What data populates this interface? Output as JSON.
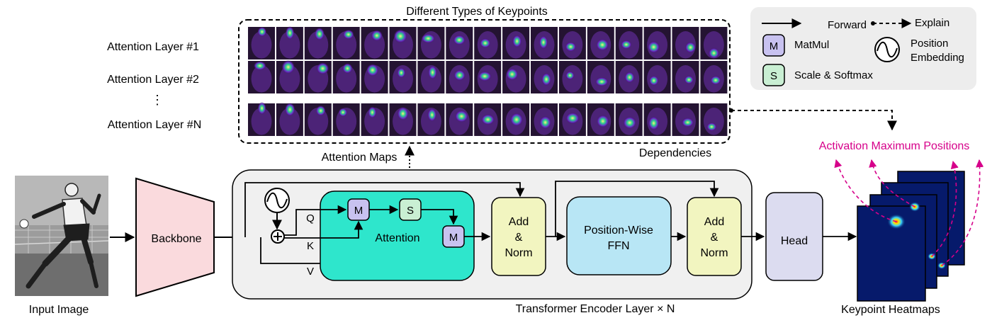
{
  "labels": {
    "keypoint_types": "Different Types of Keypoints",
    "attention_layer_1": "Attention Layer #1",
    "attention_layer_2": "Attention Layer #2",
    "vdots": "⋮",
    "attention_layer_n": "Attention Layer #N",
    "attention_maps": "Attention Maps",
    "dependencies": "Dependencies",
    "activation_max": "Activation Maximum Positions",
    "input_image": "Input Image",
    "backbone": "Backbone",
    "q": "Q",
    "k": "K",
    "v": "V",
    "matmul_letter": "M",
    "softmax_letter": "S",
    "attention": "Attention",
    "add_norm_1": [
      "Add",
      "&",
      "Norm"
    ],
    "ffn": [
      "Position-Wise",
      "FFN"
    ],
    "add_norm_2": [
      "Add",
      "&",
      "Norm"
    ],
    "head": "Head",
    "encoder_layer": "Transformer Encoder Layer × N",
    "keypoint_heatmaps": "Keypoint Heatmaps"
  },
  "legend": {
    "forward": "Forward",
    "explain": "Explain",
    "matmul_letter": "M",
    "matmul": "MatMul",
    "softmax_letter": "S",
    "softmax": "Scale & Softmax",
    "position_embedding": [
      "Position",
      "Embedding"
    ]
  },
  "colors": {
    "backbone": "#fadadd",
    "attention": "#2ee6cc",
    "matmul": "#c8c2f0",
    "softmax": "#c9efd3",
    "add_norm": "#f2f5c0",
    "ffn": "#b8e6f5",
    "head": "#dcdcf0",
    "encoder_bg": "#f0f0f0",
    "legend_bg": "#ededed",
    "magenta": "#d6008a",
    "heatmap_bg": "#061a6b"
  },
  "attention_map_rows": 3,
  "attention_map_columns": 17
}
